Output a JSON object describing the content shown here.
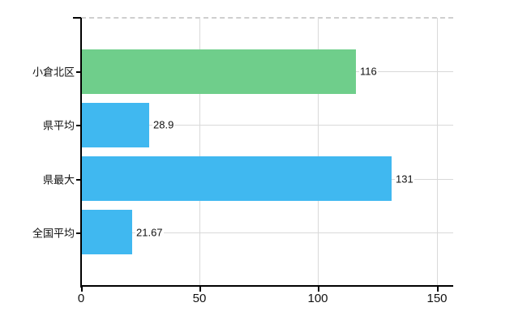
{
  "chart_data": {
    "type": "bar",
    "orientation": "horizontal",
    "title": "",
    "xlabel": "",
    "ylabel": "",
    "categories": [
      "小倉北区",
      "県平均",
      "県最大",
      "全国平均"
    ],
    "values": [
      116,
      28.9,
      131,
      21.67
    ],
    "value_labels": [
      "116",
      "28.9",
      "131",
      "21.67"
    ],
    "bar_colors": [
      "#6fce8b",
      "#40b8f0",
      "#40b8f0",
      "#40b8f0"
    ],
    "x_ticks": [
      0,
      50,
      100,
      150
    ],
    "x_tick_labels": [
      "0",
      "50",
      "100",
      "150"
    ],
    "xlim": [
      0,
      157
    ],
    "grid": true,
    "legend": null,
    "colors": {
      "green_bar": "#6fce8b",
      "blue_bar": "#40b8f0",
      "gridline": "#d9d9d9",
      "top_border": "#cfcfcf",
      "axis": "#000000",
      "text": "#111111",
      "background": "#ffffff"
    }
  }
}
